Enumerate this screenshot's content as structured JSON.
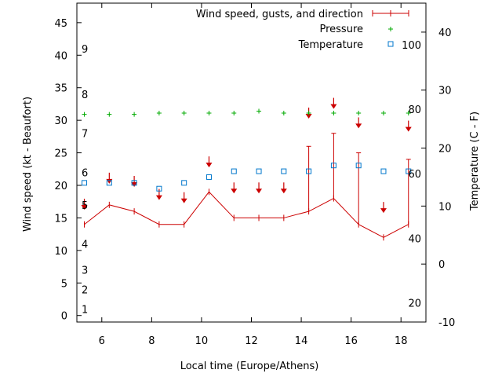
{
  "chart_data": {
    "type": "line",
    "xlabel": "Local time (Europe/Athens)",
    "ylabel": "Wind speed (kt - Beaufort)",
    "y2label": "Temperature (C - F)",
    "xlim": [
      5,
      19
    ],
    "ylim": [
      -1,
      48
    ],
    "y2lim": [
      -10,
      45
    ],
    "xticks": [
      6,
      8,
      10,
      12,
      14,
      16,
      18
    ],
    "yticks": [
      0,
      5,
      10,
      15,
      20,
      25,
      30,
      35,
      40,
      45
    ],
    "y2ticks": [
      -10,
      0,
      10,
      20,
      30,
      40
    ],
    "beaufort_labels": [
      {
        "label": "1",
        "kt": 1
      },
      {
        "label": "2",
        "kt": 4
      },
      {
        "label": "3",
        "kt": 7
      },
      {
        "label": "4",
        "kt": 11
      },
      {
        "label": "5",
        "kt": 17
      },
      {
        "label": "6",
        "kt": 22
      },
      {
        "label": "7",
        "kt": 28
      },
      {
        "label": "8",
        "kt": 34
      },
      {
        "label": "9",
        "kt": 41
      }
    ],
    "fahrenheit_labels": [
      {
        "label": "20",
        "c": -6.7
      },
      {
        "label": "40",
        "c": 4.4
      },
      {
        "label": "60",
        "c": 15.6
      },
      {
        "label": "80",
        "c": 26.7
      },
      {
        "label": "100",
        "c": 37.8
      }
    ],
    "legend_position": "top-right",
    "grid": false,
    "series": [
      {
        "name": "Wind speed, gusts, and direction",
        "color": "#cc0000",
        "x": [
          5.3,
          6.3,
          7.3,
          8.3,
          9.3,
          10.3,
          11.3,
          12.3,
          13.3,
          14.3,
          15.3,
          16.3,
          17.3,
          18.3
        ],
        "speed": [
          14,
          17,
          16,
          14,
          14,
          19,
          15,
          15,
          15,
          16,
          18,
          14,
          12,
          14
        ],
        "gust": [
          14,
          17,
          16,
          14,
          14,
          19,
          15,
          15,
          15,
          26,
          28,
          25,
          12,
          24
        ],
        "direction_arrows_kt": [
          16.5,
          20.5,
          20,
          18,
          17.5,
          23,
          19,
          19,
          19,
          30.5,
          32,
          29,
          16,
          28.5
        ]
      },
      {
        "name": "Pressure",
        "color": "#00aa00",
        "x": [
          5.3,
          6.3,
          7.3,
          8.3,
          9.3,
          10.3,
          11.3,
          12.3,
          13.3,
          14.3,
          15.3,
          16.3,
          17.3,
          18.3
        ],
        "values_kt_axis": [
          30.9,
          30.9,
          30.9,
          31.1,
          31.1,
          31.1,
          31.1,
          31.4,
          31.1,
          31.1,
          31.1,
          31.1,
          31.1,
          31.1
        ]
      },
      {
        "name": "Temperature",
        "color": "#0077cc",
        "x": [
          5.3,
          6.3,
          7.3,
          8.3,
          9.3,
          10.3,
          11.3,
          12.3,
          13.3,
          14.3,
          15.3,
          16.3,
          17.3,
          18.3
        ],
        "values": [
          14,
          14,
          14,
          13,
          14,
          15,
          16,
          16,
          16,
          16,
          17,
          17,
          16,
          16
        ]
      }
    ]
  }
}
